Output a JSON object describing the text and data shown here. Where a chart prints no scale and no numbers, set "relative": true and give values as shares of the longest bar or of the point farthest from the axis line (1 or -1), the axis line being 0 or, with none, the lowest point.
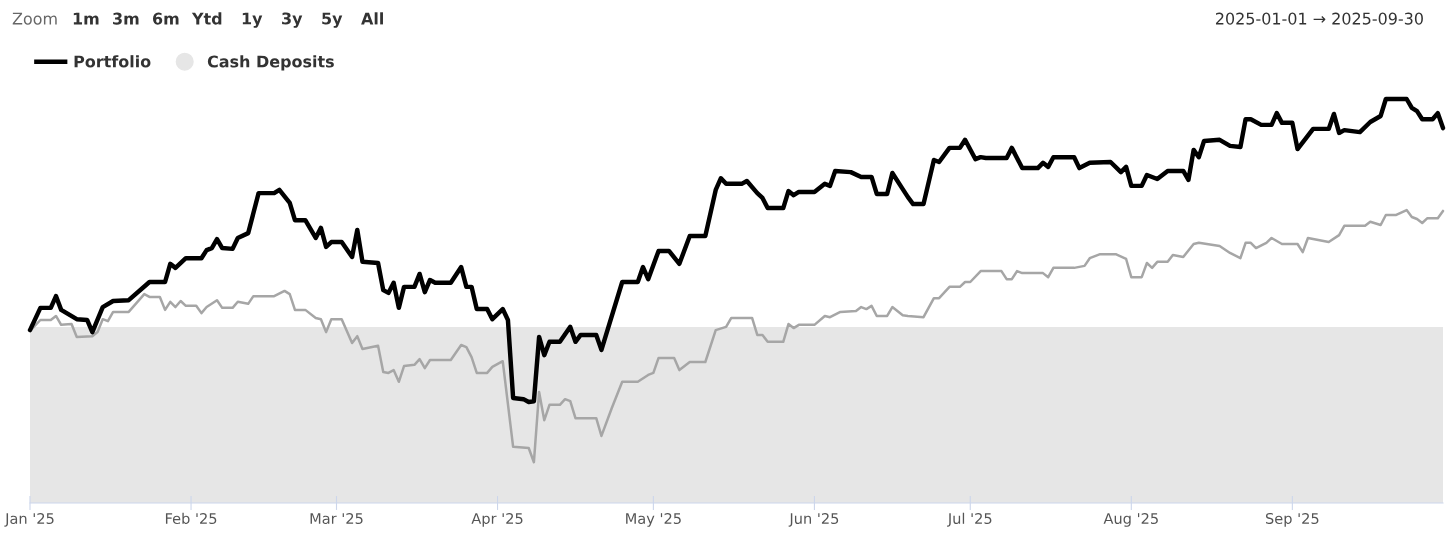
{
  "chart_data": {
    "type": "line",
    "relative": true,
    "tick_labels": "x",
    "grid": false,
    "legend": "top left",
    "marker": "none",
    "line_style": "solid",
    "annotations": [
      "Zoom",
      "1m",
      "3m",
      "6m",
      "Ytd",
      "1y",
      "3y",
      "5y",
      "All",
      "2025-01-01 → 2025-09-30"
    ],
    "xlim": [
      "2025-01-01",
      "2025-09-30"
    ],
    "xticks": [
      {
        "value": "2025-01-01",
        "label": "Jan '25"
      },
      {
        "value": "2025-02-01",
        "label": "Feb '25"
      },
      {
        "value": "2025-03-01",
        "label": "Mar '25"
      },
      {
        "value": "2025-04-01",
        "label": "Apr '25"
      },
      {
        "value": "2025-05-01",
        "label": "May '25"
      },
      {
        "value": "2025-06-01",
        "label": "Jun '25"
      },
      {
        "value": "2025-07-01",
        "label": "Jul '25"
      },
      {
        "value": "2025-08-01",
        "label": "Aug '25"
      },
      {
        "value": "2025-09-01",
        "label": "Sep '25"
      }
    ],
    "series": [
      {
        "name": "Cash Deposits",
        "type": "area",
        "color": "#e6e6e6",
        "x": [
          "2025-01-01",
          "2025-09-30"
        ],
        "values": [
          0.433,
          0.433
        ]
      },
      {
        "type": "line",
        "color": "#a6a6a6",
        "x": [
          "2025-01-01",
          "2025-01-03",
          "2025-01-05",
          "2025-01-06",
          "2025-01-07",
          "2025-01-09",
          "2025-01-10",
          "2025-01-13",
          "2025-01-14",
          "2025-01-15",
          "2025-01-16",
          "2025-01-17",
          "2025-01-20",
          "2025-01-23",
          "2025-01-24",
          "2025-01-26",
          "2025-01-27",
          "2025-01-28",
          "2025-01-29",
          "2025-01-30",
          "2025-01-31",
          "2025-02-02",
          "2025-02-03",
          "2025-02-04",
          "2025-02-06",
          "2025-02-07",
          "2025-02-09",
          "2025-02-10",
          "2025-02-12",
          "2025-02-13",
          "2025-02-17",
          "2025-02-19",
          "2025-02-20",
          "2025-02-21",
          "2025-02-23",
          "2025-02-25",
          "2025-02-26",
          "2025-02-27",
          "2025-02-28",
          "2025-03-02",
          "2025-03-04",
          "2025-03-05",
          "2025-03-06",
          "2025-03-09",
          "2025-03-10",
          "2025-03-11",
          "2025-03-12",
          "2025-03-13",
          "2025-03-14",
          "2025-03-16",
          "2025-03-17",
          "2025-03-18",
          "2025-03-19",
          "2025-03-23",
          "2025-03-25",
          "2025-03-26",
          "2025-03-27",
          "2025-03-28",
          "2025-03-30",
          "2025-03-31",
          "2025-04-02",
          "2025-04-04",
          "2025-04-07",
          "2025-04-08",
          "2025-04-09",
          "2025-04-10",
          "2025-04-11",
          "2025-04-13",
          "2025-04-14",
          "2025-04-15",
          "2025-04-16",
          "2025-04-20",
          "2025-04-21",
          "2025-04-23",
          "2025-04-25",
          "2025-04-28",
          "2025-04-30",
          "2025-05-01",
          "2025-05-02",
          "2025-05-05",
          "2025-05-06",
          "2025-05-08",
          "2025-05-11",
          "2025-05-13",
          "2025-05-15",
          "2025-05-16",
          "2025-05-20",
          "2025-05-21",
          "2025-05-22",
          "2025-05-23",
          "2025-05-26",
          "2025-05-27",
          "2025-05-28",
          "2025-05-29",
          "2025-06-01",
          "2025-06-03",
          "2025-06-04",
          "2025-06-06",
          "2025-06-09",
          "2025-06-10",
          "2025-06-11",
          "2025-06-12",
          "2025-06-13",
          "2025-06-15",
          "2025-06-16",
          "2025-06-18",
          "2025-06-19",
          "2025-06-22",
          "2025-06-24",
          "2025-06-25",
          "2025-06-27",
          "2025-06-29",
          "2025-06-30",
          "2025-07-01",
          "2025-07-03",
          "2025-07-07",
          "2025-07-08",
          "2025-07-09",
          "2025-07-10",
          "2025-07-11",
          "2025-07-15",
          "2025-07-16",
          "2025-07-17",
          "2025-07-21",
          "2025-07-23",
          "2025-07-24",
          "2025-07-26",
          "2025-07-29",
          "2025-07-31",
          "2025-08-01",
          "2025-08-03",
          "2025-08-04",
          "2025-08-05",
          "2025-08-06",
          "2025-08-08",
          "2025-08-09",
          "2025-08-11",
          "2025-08-13",
          "2025-08-14",
          "2025-08-18",
          "2025-08-20",
          "2025-08-22",
          "2025-08-23",
          "2025-08-24",
          "2025-08-25",
          "2025-08-27",
          "2025-08-28",
          "2025-08-30",
          "2025-09-02",
          "2025-09-03",
          "2025-09-04",
          "2025-09-08",
          "2025-09-10",
          "2025-09-11",
          "2025-09-15",
          "2025-09-16",
          "2025-09-18",
          "2025-09-19",
          "2025-09-21",
          "2025-09-23",
          "2025-09-24",
          "2025-09-25",
          "2025-09-26",
          "2025-09-27",
          "2025-09-29",
          "2025-09-30"
        ],
        "values": [
          0.426,
          0.453,
          0.453,
          0.463,
          0.441,
          0.443,
          0.411,
          0.413,
          0.423,
          0.455,
          0.45,
          0.473,
          0.473,
          0.517,
          0.51,
          0.51,
          0.478,
          0.498,
          0.485,
          0.5,
          0.488,
          0.488,
          0.47,
          0.485,
          0.502,
          0.483,
          0.483,
          0.498,
          0.493,
          0.512,
          0.512,
          0.525,
          0.517,
          0.478,
          0.478,
          0.458,
          0.455,
          0.423,
          0.455,
          0.455,
          0.396,
          0.413,
          0.381,
          0.389,
          0.324,
          0.322,
          0.329,
          0.3,
          0.339,
          0.342,
          0.356,
          0.334,
          0.354,
          0.354,
          0.391,
          0.386,
          0.361,
          0.322,
          0.322,
          0.337,
          0.351,
          0.139,
          0.136,
          0.101,
          0.275,
          0.205,
          0.243,
          0.243,
          0.257,
          0.252,
          0.21,
          0.21,
          0.166,
          0.235,
          0.3,
          0.3,
          0.317,
          0.322,
          0.359,
          0.359,
          0.329,
          0.349,
          0.349,
          0.428,
          0.436,
          0.458,
          0.458,
          0.416,
          0.416,
          0.399,
          0.399,
          0.443,
          0.433,
          0.441,
          0.441,
          0.463,
          0.46,
          0.473,
          0.475,
          0.485,
          0.48,
          0.488,
          0.463,
          0.463,
          0.485,
          0.465,
          0.463,
          0.46,
          0.507,
          0.507,
          0.535,
          0.535,
          0.547,
          0.547,
          0.574,
          0.574,
          0.554,
          0.554,
          0.574,
          0.569,
          0.569,
          0.559,
          0.582,
          0.582,
          0.587,
          0.606,
          0.616,
          0.616,
          0.604,
          0.559,
          0.559,
          0.594,
          0.582,
          0.597,
          0.597,
          0.614,
          0.609,
          0.641,
          0.644,
          0.636,
          0.619,
          0.606,
          0.644,
          0.644,
          0.631,
          0.644,
          0.656,
          0.641,
          0.641,
          0.621,
          0.656,
          0.646,
          0.663,
          0.686,
          0.686,
          0.696,
          0.688,
          0.713,
          0.713,
          0.725,
          0.708,
          0.703,
          0.693,
          0.705,
          0.705,
          0.723
        ]
      },
      {
        "name": "Portfolio",
        "type": "line",
        "color": "#000000",
        "x": [
          "2025-01-01",
          "2025-01-03",
          "2025-01-05",
          "2025-01-06",
          "2025-01-07",
          "2025-01-10",
          "2025-01-12",
          "2025-01-13",
          "2025-01-15",
          "2025-01-17",
          "2025-01-20",
          "2025-01-24",
          "2025-01-27",
          "2025-01-28",
          "2025-01-29",
          "2025-01-31",
          "2025-02-03",
          "2025-02-04",
          "2025-02-05",
          "2025-02-06",
          "2025-02-07",
          "2025-02-09",
          "2025-02-10",
          "2025-02-12",
          "2025-02-14",
          "2025-02-17",
          "2025-02-18",
          "2025-02-20",
          "2025-02-21",
          "2025-02-23",
          "2025-02-25",
          "2025-02-26",
          "2025-02-27",
          "2025-02-28",
          "2025-03-02",
          "2025-03-04",
          "2025-03-05",
          "2025-03-06",
          "2025-03-09",
          "2025-03-10",
          "2025-03-11",
          "2025-03-12",
          "2025-03-13",
          "2025-03-14",
          "2025-03-16",
          "2025-03-17",
          "2025-03-18",
          "2025-03-19",
          "2025-03-20",
          "2025-03-23",
          "2025-03-25",
          "2025-03-26",
          "2025-03-27",
          "2025-03-28",
          "2025-03-30",
          "2025-03-31",
          "2025-04-02",
          "2025-04-03",
          "2025-04-04",
          "2025-04-06",
          "2025-04-07",
          "2025-04-08",
          "2025-04-09",
          "2025-04-10",
          "2025-04-11",
          "2025-04-13",
          "2025-04-15",
          "2025-04-16",
          "2025-04-17",
          "2025-04-20",
          "2025-04-21",
          "2025-04-25",
          "2025-04-28",
          "2025-04-29",
          "2025-04-30",
          "2025-05-02",
          "2025-05-04",
          "2025-05-06",
          "2025-05-08",
          "2025-05-11",
          "2025-05-13",
          "2025-05-14",
          "2025-05-15",
          "2025-05-18",
          "2025-05-19",
          "2025-05-21",
          "2025-05-22",
          "2025-05-23",
          "2025-05-26",
          "2025-05-27",
          "2025-05-28",
          "2025-05-29",
          "2025-06-01",
          "2025-06-03",
          "2025-06-04",
          "2025-06-05",
          "2025-06-08",
          "2025-06-10",
          "2025-06-12",
          "2025-06-13",
          "2025-06-15",
          "2025-06-16",
          "2025-06-18",
          "2025-06-19",
          "2025-06-20",
          "2025-06-22",
          "2025-06-24",
          "2025-06-25",
          "2025-06-27",
          "2025-06-29",
          "2025-06-30",
          "2025-07-02",
          "2025-07-03",
          "2025-07-04",
          "2025-07-08",
          "2025-07-09",
          "2025-07-11",
          "2025-07-14",
          "2025-07-15",
          "2025-07-16",
          "2025-07-17",
          "2025-07-21",
          "2025-07-22",
          "2025-07-24",
          "2025-07-28",
          "2025-07-30",
          "2025-07-31",
          "2025-08-01",
          "2025-08-03",
          "2025-08-04",
          "2025-08-06",
          "2025-08-08",
          "2025-08-11",
          "2025-08-12",
          "2025-08-13",
          "2025-08-14",
          "2025-08-15",
          "2025-08-18",
          "2025-08-20",
          "2025-08-22",
          "2025-08-23",
          "2025-08-24",
          "2025-08-26",
          "2025-08-28",
          "2025-08-29",
          "2025-08-30",
          "2025-09-01",
          "2025-09-02",
          "2025-09-05",
          "2025-09-08",
          "2025-09-09",
          "2025-09-10",
          "2025-09-11",
          "2025-09-14",
          "2025-09-16",
          "2025-09-18",
          "2025-09-19",
          "2025-09-23",
          "2025-09-24",
          "2025-09-25",
          "2025-09-26",
          "2025-09-28",
          "2025-09-29",
          "2025-09-30"
        ],
        "values": [
          0.428,
          0.483,
          0.483,
          0.512,
          0.478,
          0.455,
          0.453,
          0.423,
          0.485,
          0.5,
          0.502,
          0.547,
          0.547,
          0.592,
          0.582,
          0.606,
          0.606,
          0.626,
          0.631,
          0.653,
          0.631,
          0.629,
          0.656,
          0.668,
          0.767,
          0.767,
          0.775,
          0.743,
          0.7,
          0.7,
          0.656,
          0.681,
          0.634,
          0.646,
          0.646,
          0.609,
          0.676,
          0.597,
          0.594,
          0.527,
          0.52,
          0.545,
          0.483,
          0.535,
          0.535,
          0.567,
          0.522,
          0.552,
          0.545,
          0.545,
          0.584,
          0.535,
          0.535,
          0.48,
          0.48,
          0.455,
          0.48,
          0.453,
          0.26,
          0.257,
          0.25,
          0.252,
          0.411,
          0.366,
          0.399,
          0.399,
          0.436,
          0.399,
          0.416,
          0.416,
          0.379,
          0.547,
          0.547,
          0.584,
          0.554,
          0.624,
          0.624,
          0.592,
          0.661,
          0.661,
          0.775,
          0.804,
          0.79,
          0.79,
          0.797,
          0.767,
          0.755,
          0.73,
          0.73,
          0.772,
          0.762,
          0.77,
          0.77,
          0.79,
          0.785,
          0.822,
          0.819,
          0.807,
          0.807,
          0.765,
          0.765,
          0.817,
          0.777,
          0.757,
          0.74,
          0.74,
          0.849,
          0.844,
          0.879,
          0.879,
          0.899,
          0.851,
          0.856,
          0.854,
          0.854,
          0.879,
          0.829,
          0.829,
          0.842,
          0.832,
          0.856,
          0.856,
          0.829,
          0.842,
          0.844,
          0.819,
          0.832,
          0.785,
          0.785,
          0.812,
          0.802,
          0.822,
          0.822,
          0.8,
          0.874,
          0.856,
          0.896,
          0.899,
          0.884,
          0.881,
          0.95,
          0.95,
          0.936,
          0.936,
          0.965,
          0.941,
          0.941,
          0.876,
          0.926,
          0.926,
          0.963,
          0.916,
          0.923,
          0.918,
          0.943,
          0.958,
          1,
          1,
          0.978,
          0.97,
          0.95,
          0.95,
          0.965,
          0.928
        ]
      }
    ]
  }
}
